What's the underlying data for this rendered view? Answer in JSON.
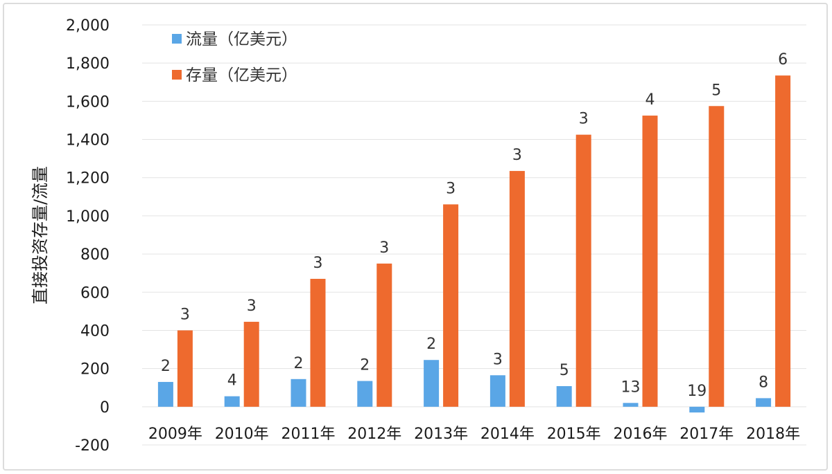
{
  "chart_data": {
    "type": "bar",
    "title": "",
    "xlabel": "",
    "ylabel": "直接投资存量/流量",
    "categories": [
      "2009年",
      "2010年",
      "2011年",
      "2012年",
      "2013年",
      "2014年",
      "2015年",
      "2016年",
      "2017年",
      "2018年"
    ],
    "y_ticks": [
      "-200",
      "0",
      "200",
      "400",
      "600",
      "800",
      "1,000",
      "1,200",
      "1,400",
      "1,600",
      "1,800",
      "2,000"
    ],
    "ylim": [
      -200,
      2000
    ],
    "grid": true,
    "legend_position": "top-left",
    "series": [
      {
        "name": "流量（亿美元）",
        "color": "#5aa6e6",
        "values": [
          130,
          55,
          145,
          135,
          245,
          165,
          108,
          20,
          -30,
          45
        ],
        "labels": [
          "2",
          "4",
          "2",
          "2",
          "2",
          "3",
          "5",
          "13",
          "19",
          "8"
        ]
      },
      {
        "name": "存量（亿美元）",
        "color": "#ee6a2e",
        "values": [
          400,
          445,
          670,
          750,
          1060,
          1235,
          1425,
          1525,
          1575,
          1735
        ],
        "labels": [
          "3",
          "3",
          "3",
          "3",
          "3",
          "3",
          "3",
          "4",
          "5",
          "6"
        ]
      }
    ]
  }
}
